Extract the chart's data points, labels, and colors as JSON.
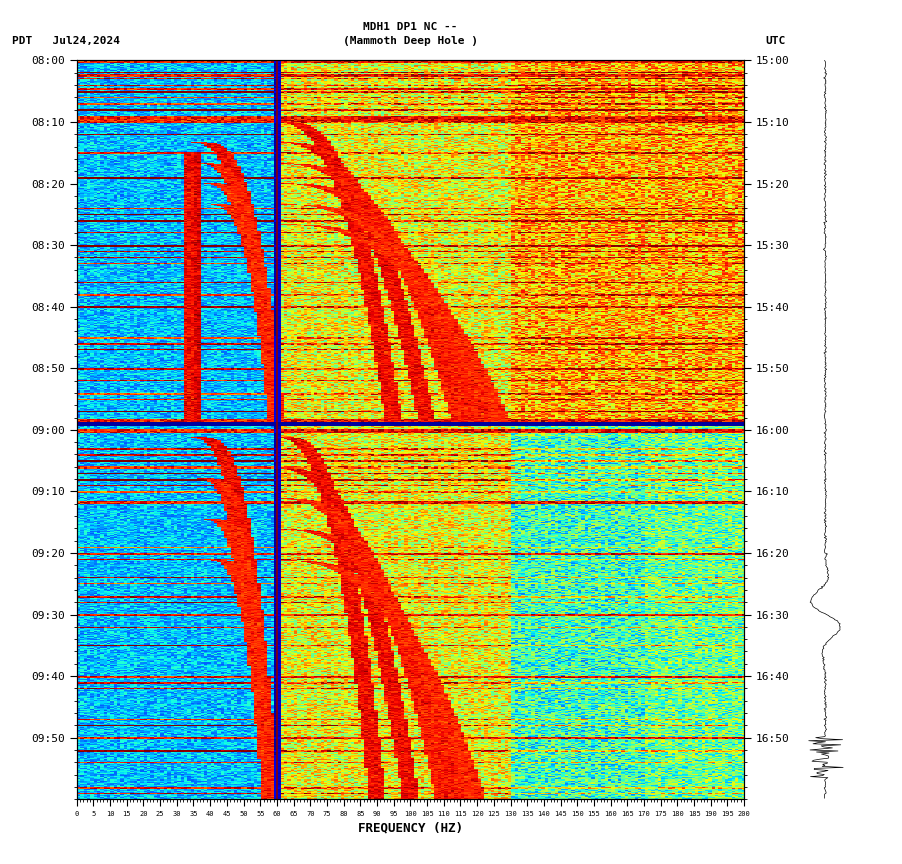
{
  "title_line1": "MDH1 DP1 NC --",
  "title_line2": "(Mammoth Deep Hole )",
  "left_label": "PDT   Jul24,2024",
  "right_label": "UTC",
  "xlabel": "FREQUENCY (HZ)",
  "freq_ticks": [
    0,
    5,
    10,
    15,
    20,
    25,
    30,
    35,
    40,
    45,
    50,
    55,
    60,
    65,
    70,
    75,
    80,
    85,
    90,
    95,
    100,
    105,
    110,
    115,
    120,
    125,
    130,
    135,
    140,
    145,
    150,
    155,
    160,
    165,
    170,
    175,
    180,
    185,
    190,
    195,
    200
  ],
  "left_time_labels": [
    "08:00",
    "08:10",
    "08:20",
    "08:30",
    "08:40",
    "08:50",
    "09:00",
    "09:10",
    "09:20",
    "09:30",
    "09:40",
    "09:50"
  ],
  "right_time_labels": [
    "15:00",
    "15:10",
    "15:20",
    "15:30",
    "15:40",
    "15:50",
    "16:00",
    "16:10",
    "16:20",
    "16:30",
    "16:40",
    "16:50"
  ],
  "fig_width": 9.02,
  "fig_height": 8.64,
  "dpi": 100,
  "freq_max": 200,
  "n_time": 720,
  "n_freq": 200,
  "noise_seed": 42,
  "colormap": "jet",
  "bg_color": "white",
  "vline_color": "darkred",
  "hline_color": "darkblue"
}
